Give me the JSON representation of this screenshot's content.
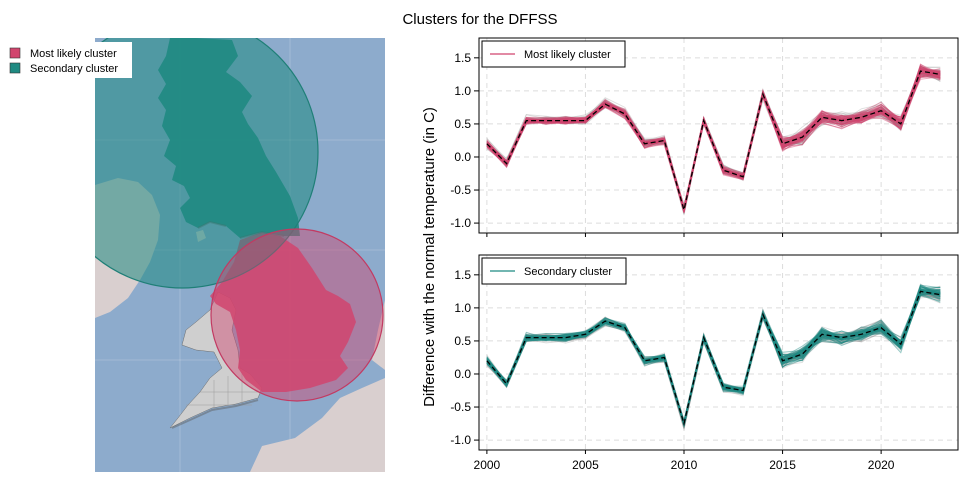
{
  "title": "Clusters for the DFFSS",
  "map_legend": [
    {
      "label": "Most likely cluster",
      "color": "#d1456e"
    },
    {
      "label": "Secondary cluster",
      "color": "#1f8a82"
    }
  ],
  "colors": {
    "sea": "#8dabcc",
    "land": "#d9cfcf",
    "great_britain": "#1f8a82",
    "wales_west": "#cfcfcf",
    "most_likely": "#d1456e",
    "secondary": "#1f8a82",
    "background_lines": "#8a8a8a",
    "reference": "#000000"
  },
  "chart_data": [
    {
      "type": "line",
      "legend": "Most likely cluster",
      "legend_placement": "top-left",
      "color": "#d1456e",
      "ylabel": "Difference with the normal temperature (in C)",
      "ylim": [
        -1.15,
        1.8
      ],
      "yticks": [
        -1.0,
        -0.5,
        0.0,
        0.5,
        1.0,
        1.5
      ],
      "xlim": [
        1999.6,
        2023.9
      ],
      "xticks": [
        2000,
        2005,
        2010,
        2015,
        2020
      ],
      "show_xtick_labels": false,
      "grid": true,
      "x": [
        2000,
        2001,
        2002,
        2003,
        2004,
        2005,
        2006,
        2007,
        2008,
        2009,
        2010,
        2011,
        2012,
        2013,
        2014,
        2015,
        2016,
        2017,
        2018,
        2019,
        2020,
        2021,
        2022,
        2023
      ],
      "reference_values": [
        0.2,
        -0.1,
        0.55,
        0.55,
        0.55,
        0.55,
        0.8,
        0.65,
        0.2,
        0.25,
        -0.8,
        0.55,
        -0.2,
        -0.3,
        0.95,
        0.2,
        0.3,
        0.6,
        0.55,
        0.6,
        0.7,
        0.5,
        1.3,
        1.25
      ]
    },
    {
      "type": "line",
      "legend": "Secondary cluster",
      "legend_placement": "top-left",
      "color": "#1f8a82",
      "ylim": [
        -1.15,
        1.8
      ],
      "yticks": [
        -1.0,
        -0.5,
        0.0,
        0.5,
        1.0,
        1.5
      ],
      "xlim": [
        1999.6,
        2023.9
      ],
      "xticks": [
        2000,
        2005,
        2010,
        2015,
        2020
      ],
      "show_xtick_labels": true,
      "grid": true,
      "x": [
        2000,
        2001,
        2002,
        2003,
        2004,
        2005,
        2006,
        2007,
        2008,
        2009,
        2010,
        2011,
        2012,
        2013,
        2014,
        2015,
        2016,
        2017,
        2018,
        2019,
        2020,
        2021,
        2022,
        2023
      ],
      "reference_values": [
        0.2,
        -0.15,
        0.55,
        0.55,
        0.55,
        0.6,
        0.8,
        0.7,
        0.2,
        0.25,
        -0.75,
        0.55,
        -0.2,
        -0.25,
        0.9,
        0.2,
        0.3,
        0.6,
        0.55,
        0.6,
        0.7,
        0.45,
        1.25,
        1.2
      ]
    }
  ]
}
